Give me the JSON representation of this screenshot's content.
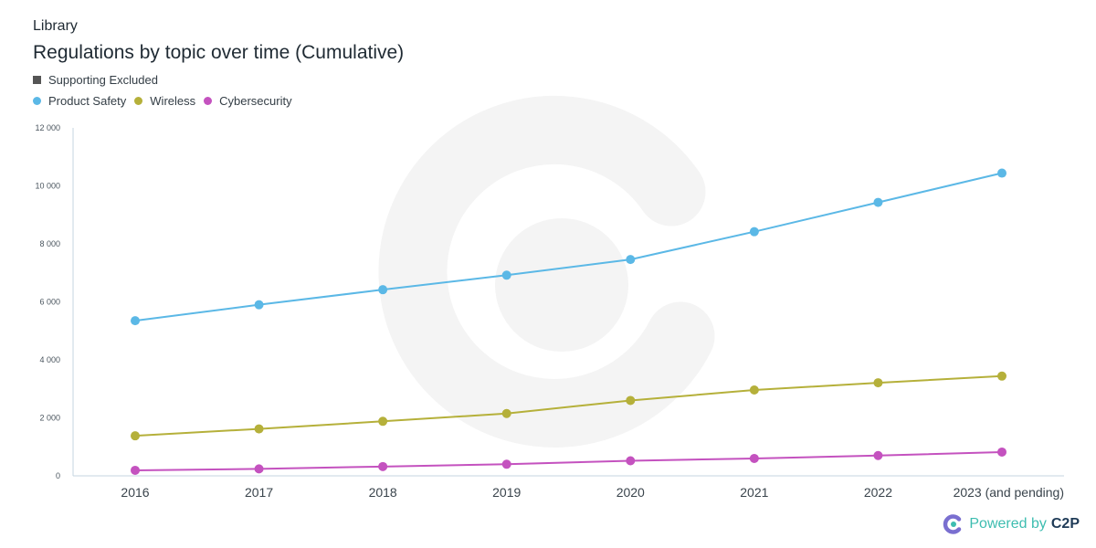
{
  "header": {
    "section_label": "Library",
    "title": "Regulations by topic over time (Cumulative)"
  },
  "legend": {
    "toggle_label": "Supporting Excluded",
    "series_labels": [
      "Product Safety",
      "Wireless",
      "Cybersecurity"
    ]
  },
  "footer": {
    "powered_text": "Powered by",
    "brand": "C2P"
  },
  "colors": {
    "product_safety": "#5bb8e6",
    "wireless": "#b5b03a",
    "cybersecurity": "#c452bf",
    "watermark": "#f4f4f4",
    "toggle": "#555555"
  },
  "chart_data": {
    "type": "line",
    "title": "Regulations by topic over time (Cumulative)",
    "xlabel": "",
    "ylabel": "",
    "categories": [
      "2016",
      "2017",
      "2018",
      "2019",
      "2020",
      "2021",
      "2022",
      "2023 (and pending)"
    ],
    "ylim": [
      0,
      12000
    ],
    "yticks": [
      0,
      2000,
      4000,
      6000,
      8000,
      10000,
      12000
    ],
    "ytick_labels": [
      "0",
      "2 000",
      "4 000",
      "6 000",
      "8 000",
      "10 000",
      "12 000"
    ],
    "grid": false,
    "legend_position": "top-left",
    "series": [
      {
        "name": "Product Safety",
        "color": "#5bb8e6",
        "values": [
          5350,
          5900,
          6420,
          6920,
          7460,
          8420,
          9430,
          10440
        ]
      },
      {
        "name": "Wireless",
        "color": "#b5b03a",
        "values": [
          1380,
          1620,
          1880,
          2150,
          2600,
          2960,
          3210,
          3440
        ]
      },
      {
        "name": "Cybersecurity",
        "color": "#c452bf",
        "values": [
          190,
          240,
          320,
          400,
          520,
          600,
          700,
          820
        ]
      }
    ]
  }
}
